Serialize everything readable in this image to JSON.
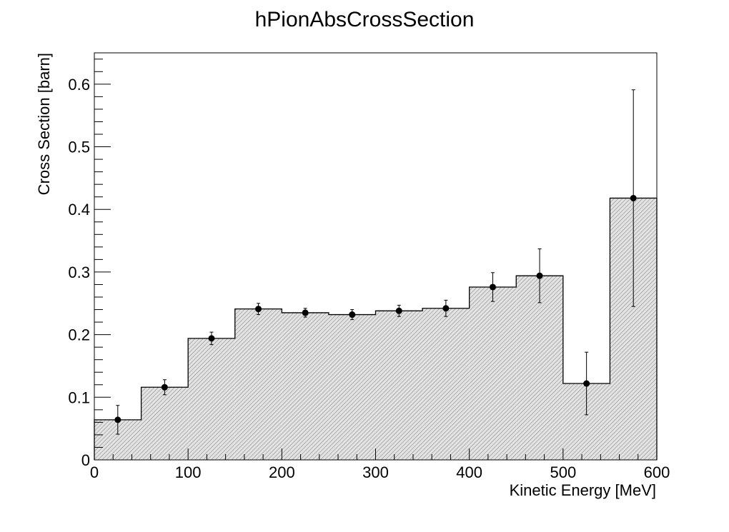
{
  "chart_data": {
    "type": "bar",
    "title": "hPionAbsCrossSection",
    "xlabel": "Kinetic Energy [MeV]",
    "ylabel": "Cross Section [barn]",
    "xlim": [
      0,
      600
    ],
    "ylim": [
      0,
      0.65
    ],
    "grid": false,
    "x_ticks": [
      0,
      100,
      200,
      300,
      400,
      500,
      600
    ],
    "x_tick_labels": [
      "0",
      "100",
      "200",
      "300",
      "400",
      "500",
      "600"
    ],
    "y_ticks": [
      0,
      0.1,
      0.2,
      0.3,
      0.4,
      0.5,
      0.6
    ],
    "y_tick_labels": [
      "0",
      "0.1",
      "0.2",
      "0.3",
      "0.4",
      "0.5",
      "0.6"
    ],
    "bin_edges": [
      0,
      50,
      100,
      150,
      200,
      250,
      300,
      350,
      400,
      450,
      500,
      550,
      600
    ],
    "bin_centers": [
      25,
      75,
      125,
      175,
      225,
      275,
      325,
      375,
      425,
      475,
      525,
      575
    ],
    "values": [
      0.064,
      0.116,
      0.194,
      0.241,
      0.235,
      0.232,
      0.238,
      0.242,
      0.276,
      0.294,
      0.122,
      0.418
    ],
    "errors": [
      0.023,
      0.012,
      0.01,
      0.009,
      0.007,
      0.008,
      0.009,
      0.013,
      0.023,
      0.043,
      0.05,
      0.173
    ],
    "colors": {
      "fill": "#e3e3e3",
      "hatch": "#8a8a8a",
      "line": "#000000",
      "marker": "#000000"
    }
  }
}
